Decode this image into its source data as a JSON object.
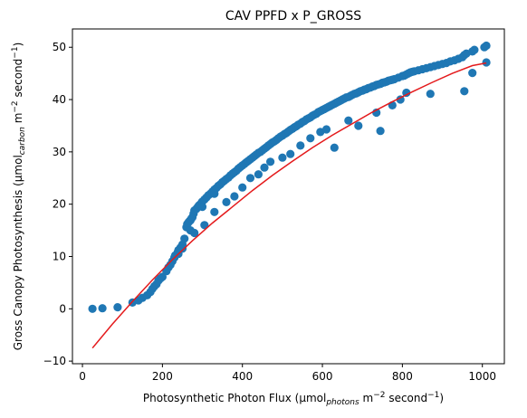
{
  "chart_data": {
    "type": "scatter",
    "title": "CAV PPFD x P_GROSS",
    "xlabel": {
      "pre": "Photosynthetic Photon Flux (μmol",
      "sub": "photons",
      "mid": " m",
      "sup1": "−2",
      "mid2": " second",
      "sup2": "−1",
      "post": ")"
    },
    "ylabel": {
      "pre": "Gross Canopy Photosynthesis (μmol",
      "sub": "carbon",
      "mid": " m",
      "sup1": "−2",
      "mid2": " second",
      "sup2": "−1",
      "post": ")"
    },
    "xlim": [
      -25,
      1055
    ],
    "ylim": [
      -10.5,
      53.5
    ],
    "xticks": [
      0,
      200,
      400,
      600,
      800,
      1000
    ],
    "yticks": [
      -10,
      0,
      10,
      20,
      30,
      40,
      50
    ],
    "grid": false,
    "colors": {
      "points": "#1f77b4",
      "fit": "#e41a1c"
    },
    "series": [
      {
        "type": "scatter",
        "x": [
          25,
          50,
          88,
          125,
          140,
          150,
          162,
          170,
          175,
          180,
          185,
          190,
          195,
          200,
          210,
          215,
          220,
          225,
          230,
          232,
          238,
          240,
          245,
          250,
          255,
          260,
          262,
          265,
          268,
          270,
          272,
          275,
          278,
          280,
          285,
          288,
          290,
          292,
          295,
          298,
          300,
          305,
          310,
          315,
          320,
          325,
          330,
          335,
          340,
          345,
          350,
          355,
          360,
          365,
          370,
          375,
          380,
          385,
          390,
          395,
          400,
          405,
          410,
          415,
          420,
          425,
          430,
          435,
          440,
          445,
          450,
          455,
          460,
          465,
          470,
          475,
          480,
          485,
          490,
          495,
          500,
          505,
          510,
          515,
          520,
          525,
          530,
          535,
          540,
          545,
          550,
          555,
          560,
          565,
          570,
          575,
          580,
          585,
          590,
          595,
          600,
          605,
          610,
          615,
          620,
          625,
          630,
          635,
          640,
          645,
          650,
          655,
          660,
          665,
          670,
          675,
          680,
          685,
          690,
          695,
          700,
          705,
          710,
          715,
          720,
          725,
          730,
          735,
          740,
          745,
          750,
          755,
          760,
          765,
          770,
          775,
          780,
          790,
          800,
          805,
          810,
          815,
          820,
          825,
          830,
          840,
          850,
          860,
          870,
          880,
          890,
          900,
          910,
          920,
          930,
          940,
          950,
          955,
          960,
          975,
          980,
          1005,
          1010,
          305,
          330,
          360,
          380,
          400,
          420,
          440,
          455,
          470,
          500,
          520,
          545,
          570,
          595,
          610,
          630,
          665,
          690,
          735,
          745,
          775,
          795,
          810,
          870,
          955,
          1010,
          280,
          330,
          270,
          975,
          250,
          240,
          300
        ],
        "y": [
          0,
          0.1,
          0.3,
          1.2,
          1.6,
          2.1,
          2.6,
          3.2,
          3.8,
          4.3,
          4.7,
          5.4,
          5.8,
          6.1,
          7.2,
          7.9,
          8.4,
          9.1,
          9.8,
          10.2,
          10.8,
          11.2,
          11.7,
          12.3,
          13.4,
          15.6,
          16.2,
          16.5,
          16.8,
          16.9,
          17.2,
          17.5,
          18.2,
          18.8,
          19.1,
          19.4,
          19.6,
          19.8,
          20.0,
          20.3,
          20.5,
          20.9,
          21.3,
          21.7,
          22.0,
          22.4,
          22.8,
          23.1,
          23.5,
          23.8,
          24.2,
          24.5,
          24.8,
          25.1,
          25.5,
          25.8,
          26.1,
          26.4,
          26.8,
          27.1,
          27.4,
          27.7,
          28.0,
          28.3,
          28.6,
          28.9,
          29.2,
          29.5,
          29.8,
          30.0,
          30.3,
          30.6,
          30.9,
          31.2,
          31.5,
          31.8,
          32.0,
          32.3,
          32.6,
          32.9,
          33.1,
          33.4,
          33.6,
          33.9,
          34.2,
          34.4,
          34.7,
          34.9,
          35.2,
          35.4,
          35.7,
          35.9,
          36.2,
          36.4,
          36.6,
          36.9,
          37.1,
          37.3,
          37.6,
          37.8,
          38.0,
          38.2,
          38.4,
          38.6,
          38.8,
          39.0,
          39.2,
          39.4,
          39.6,
          39.8,
          40.0,
          40.2,
          40.4,
          40.5,
          40.7,
          40.9,
          41.1,
          41.2,
          41.4,
          41.6,
          41.7,
          41.9,
          42.0,
          42.2,
          42.3,
          42.5,
          42.6,
          42.8,
          42.9,
          43.0,
          43.2,
          43.3,
          43.4,
          43.6,
          43.7,
          43.8,
          43.9,
          44.2,
          44.5,
          44.6,
          44.8,
          45.0,
          45.2,
          45.3,
          45.4,
          45.6,
          45.8,
          46.0,
          46.2,
          46.4,
          46.6,
          46.8,
          47.0,
          47.3,
          47.5,
          47.8,
          48.1,
          48.5,
          48.8,
          49.2,
          49.5,
          50.0,
          50.3,
          16.0,
          18.5,
          20.4,
          21.5,
          23.2,
          25.0,
          25.7,
          27.0,
          28.1,
          28.9,
          29.6,
          31.2,
          32.6,
          33.8,
          34.3,
          30.8,
          36.0,
          35.0,
          37.5,
          34.0,
          38.9,
          40.0,
          41.3,
          41.1,
          41.6,
          47.1,
          14.5,
          22.0,
          15.0,
          45.1,
          11.5,
          10.5,
          19.5
        ]
      },
      {
        "type": "line",
        "x": [
          25,
          75,
          125,
          175,
          225,
          275,
          325,
          375,
          425,
          475,
          525,
          575,
          625,
          675,
          725,
          775,
          825,
          875,
          925,
          975,
          1010
        ],
        "y": [
          -7.5,
          -2.9,
          1.4,
          5.5,
          9.4,
          13.0,
          16.4,
          19.5,
          22.6,
          25.5,
          28.2,
          30.8,
          33.2,
          35.4,
          37.6,
          39.6,
          41.5,
          43.3,
          45.0,
          46.5,
          47.0
        ]
      }
    ]
  }
}
